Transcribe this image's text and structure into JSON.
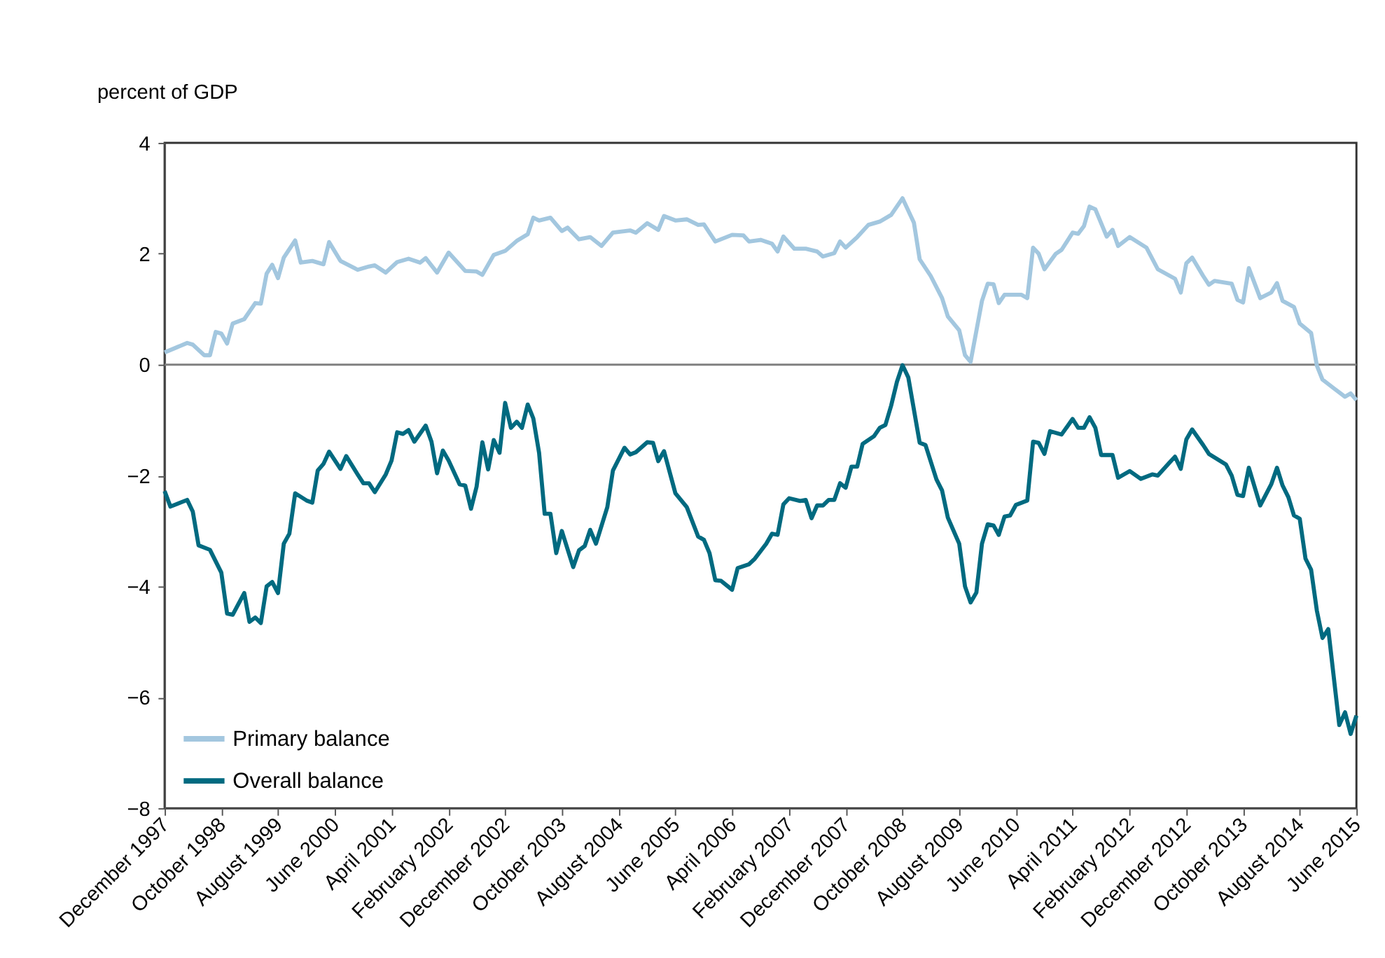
{
  "chart_data": {
    "type": "line",
    "ylabel": "percent of GDP",
    "ylim": [
      -8,
      4
    ],
    "yticks": [
      {
        "value": -8,
        "label": "−8"
      },
      {
        "value": -6,
        "label": "−6"
      },
      {
        "value": -4,
        "label": "−4"
      },
      {
        "value": -2,
        "label": "−2"
      },
      0,
      2,
      4
    ],
    "xlim": [
      "1997-12",
      "2015-06"
    ],
    "xticks": [
      {
        "value": "1997-12",
        "label": "December 1997"
      },
      {
        "value": "1998-10",
        "label": "October 1998"
      },
      {
        "value": "1999-08",
        "label": "August 1999"
      },
      {
        "value": "2000-06",
        "label": "June 2000"
      },
      {
        "value": "2001-04",
        "label": "April 2001"
      },
      {
        "value": "2002-02",
        "label": "February 2002"
      },
      {
        "value": "2002-12",
        "label": "December 2002"
      },
      {
        "value": "2003-10",
        "label": "October 2003"
      },
      {
        "value": "2004-08",
        "label": "August 2004"
      },
      {
        "value": "2005-06",
        "label": "June 2005"
      },
      {
        "value": "2006-04",
        "label": "April 2006"
      },
      {
        "value": "2007-02",
        "label": "February 2007"
      },
      {
        "value": "2007-12",
        "label": "December 2007"
      },
      {
        "value": "2008-10",
        "label": "October 2008"
      },
      {
        "value": "2009-08",
        "label": "August 2009"
      },
      {
        "value": "2010-06",
        "label": "June 2010"
      },
      {
        "value": "2011-04",
        "label": "April 2011"
      },
      {
        "value": "2012-02",
        "label": "February 2012"
      },
      {
        "value": "2012-12",
        "label": "December 2012"
      },
      {
        "value": "2013-10",
        "label": "October 2013"
      },
      {
        "value": "2014-08",
        "label": "August 2014"
      },
      {
        "value": "2015-06",
        "label": "June 2015"
      }
    ],
    "grid": false,
    "legend": "bottom left",
    "marker": "none",
    "line_style": "solid",
    "ref_lines": [
      {
        "axis": "y",
        "value": 0,
        "color": "#808080"
      }
    ],
    "series": [
      {
        "name": "Primary balance",
        "color": "#a3c7df",
        "x": [
          "1997-12",
          "1998-04",
          "1998-05",
          "1998-07",
          "1998-08",
          "1998-09",
          "1998-10",
          "1998-11",
          "1998-12",
          "1999-02",
          "1999-04",
          "1999-05",
          "1999-06",
          "1999-07",
          "1999-08",
          "1999-09",
          "1999-11",
          "1999-12",
          "2000-02",
          "2000-04",
          "2000-05",
          "2000-07",
          "2000-10",
          "2000-12",
          "2001-01",
          "2001-03",
          "2001-05",
          "2001-07",
          "2001-09",
          "2001-10",
          "2001-12",
          "2002-02",
          "2002-05",
          "2002-07",
          "2002-08",
          "2002-10",
          "2002-12",
          "2003-02",
          "2003-04",
          "2003-05",
          "2003-06",
          "2003-08",
          "2003-10",
          "2003-11",
          "2004-01",
          "2004-03",
          "2004-05",
          "2004-07",
          "2004-10",
          "2004-11",
          "2005-01",
          "2005-03",
          "2005-04",
          "2005-06",
          "2005-08",
          "2005-10",
          "2005-11",
          "2006-01",
          "2006-04",
          "2006-06",
          "2006-07",
          "2006-09",
          "2006-11",
          "2006-12",
          "2007-01",
          "2007-03",
          "2007-05",
          "2007-07",
          "2007-08",
          "2007-10",
          "2007-11",
          "2007-12",
          "2008-02",
          "2008-04",
          "2008-06",
          "2008-08",
          "2008-10",
          "2008-12",
          "2009-01",
          "2009-03",
          "2009-05",
          "2009-06",
          "2009-08",
          "2009-09",
          "2009-10",
          "2009-12",
          "2010-01",
          "2010-02",
          "2010-03",
          "2010-04",
          "2010-07",
          "2010-08",
          "2010-09",
          "2010-10",
          "2010-11",
          "2011-01",
          "2011-02",
          "2011-04",
          "2011-05",
          "2011-06",
          "2011-07",
          "2011-08",
          "2011-10",
          "2011-11",
          "2011-12",
          "2012-02",
          "2012-05",
          "2012-07",
          "2012-10",
          "2012-11",
          "2012-12",
          "2013-01",
          "2013-03",
          "2013-04",
          "2013-05",
          "2013-08",
          "2013-09",
          "2013-10",
          "2013-11",
          "2014-01",
          "2014-03",
          "2014-04",
          "2014-05",
          "2014-07",
          "2014-08",
          "2014-10",
          "2014-11",
          "2014-12",
          "2015-02",
          "2015-04",
          "2015-05",
          "2015-06"
        ],
        "values": [
          0.22,
          0.39,
          0.36,
          0.17,
          0.17,
          0.59,
          0.56,
          0.38,
          0.74,
          0.82,
          1.11,
          1.1,
          1.64,
          1.8,
          1.56,
          1.93,
          2.24,
          1.84,
          1.87,
          1.81,
          2.21,
          1.87,
          1.71,
          1.77,
          1.79,
          1.66,
          1.85,
          1.91,
          1.84,
          1.92,
          1.66,
          2.02,
          1.69,
          1.68,
          1.62,
          1.98,
          2.05,
          2.23,
          2.35,
          2.65,
          2.6,
          2.65,
          2.41,
          2.47,
          2.26,
          2.3,
          2.14,
          2.38,
          2.42,
          2.38,
          2.55,
          2.43,
          2.68,
          2.6,
          2.62,
          2.52,
          2.53,
          2.22,
          2.34,
          2.33,
          2.22,
          2.25,
          2.18,
          2.04,
          2.31,
          2.09,
          2.09,
          2.04,
          1.95,
          2.01,
          2.22,
          2.11,
          2.3,
          2.52,
          2.58,
          2.7,
          3.0,
          2.56,
          1.9,
          1.6,
          1.2,
          0.87,
          0.62,
          0.17,
          0.05,
          1.15,
          1.46,
          1.45,
          1.11,
          1.26,
          1.26,
          1.2,
          2.11,
          2.0,
          1.72,
          2.0,
          2.07,
          2.38,
          2.36,
          2.5,
          2.85,
          2.8,
          2.31,
          2.43,
          2.14,
          2.3,
          2.11,
          1.72,
          1.55,
          1.3,
          1.83,
          1.93,
          1.6,
          1.44,
          1.51,
          1.46,
          1.17,
          1.12,
          1.74,
          1.2,
          1.3,
          1.47,
          1.15,
          1.04,
          0.74,
          0.57,
          -0.02,
          -0.27,
          -0.43,
          -0.58,
          -0.52,
          -0.64
        ]
      },
      {
        "name": "Overall balance",
        "color": "#006a80",
        "x": [
          "1997-12",
          "1998-01",
          "1998-04",
          "1998-05",
          "1998-06",
          "1998-08",
          "1998-10",
          "1998-11",
          "1998-12",
          "1999-02",
          "1999-03",
          "1999-04",
          "1999-05",
          "1999-06",
          "1999-07",
          "1999-08",
          "1999-09",
          "1999-10",
          "1999-11",
          "2000-01",
          "2000-02",
          "2000-03",
          "2000-04",
          "2000-05",
          "2000-07",
          "2000-08",
          "2000-10",
          "2000-11",
          "2000-12",
          "2001-01",
          "2001-03",
          "2001-04",
          "2001-05",
          "2001-06",
          "2001-07",
          "2001-08",
          "2001-10",
          "2001-11",
          "2001-12",
          "2002-01",
          "2002-02",
          "2002-04",
          "2002-05",
          "2002-06",
          "2002-07",
          "2002-08",
          "2002-09",
          "2002-10",
          "2002-11",
          "2002-12",
          "2003-01",
          "2003-02",
          "2003-03",
          "2003-04",
          "2003-05",
          "2003-06",
          "2003-07",
          "2003-08",
          "2003-09",
          "2003-10",
          "2003-12",
          "2004-01",
          "2004-02",
          "2004-03",
          "2004-04",
          "2004-06",
          "2004-07",
          "2004-09",
          "2004-10",
          "2004-11",
          "2005-01",
          "2005-02",
          "2005-03",
          "2005-04",
          "2005-06",
          "2005-08",
          "2005-10",
          "2005-11",
          "2005-12",
          "2006-01",
          "2006-02",
          "2006-04",
          "2006-05",
          "2006-07",
          "2006-08",
          "2006-10",
          "2006-11",
          "2006-12",
          "2007-01",
          "2007-02",
          "2007-04",
          "2007-05",
          "2007-06",
          "2007-07",
          "2007-08",
          "2007-09",
          "2007-10",
          "2007-11",
          "2007-12",
          "2008-01",
          "2008-02",
          "2008-03",
          "2008-05",
          "2008-06",
          "2008-07",
          "2008-08",
          "2008-09",
          "2008-10",
          "2008-11",
          "2009-01",
          "2009-02",
          "2009-04",
          "2009-05",
          "2009-06",
          "2009-08",
          "2009-09",
          "2009-10",
          "2009-11",
          "2009-12",
          "2010-01",
          "2010-02",
          "2010-03",
          "2010-04",
          "2010-05",
          "2010-06",
          "2010-08",
          "2010-09",
          "2010-10",
          "2010-11",
          "2010-12",
          "2011-02",
          "2011-04",
          "2011-05",
          "2011-06",
          "2011-07",
          "2011-08",
          "2011-09",
          "2011-11",
          "2011-12",
          "2012-02",
          "2012-04",
          "2012-06",
          "2012-07",
          "2012-09",
          "2012-10",
          "2012-11",
          "2012-12",
          "2013-01",
          "2013-03",
          "2013-04",
          "2013-07",
          "2013-08",
          "2013-09",
          "2013-10",
          "2013-11",
          "2014-01",
          "2014-03",
          "2014-04",
          "2014-05",
          "2014-06",
          "2014-07",
          "2014-08",
          "2014-09",
          "2014-10",
          "2014-11",
          "2014-12",
          "2015-01",
          "2015-03",
          "2015-04",
          "2015-05",
          "2015-06"
        ],
        "values": [
          -2.28,
          -2.56,
          -2.44,
          -2.65,
          -3.26,
          -3.34,
          -3.75,
          -4.49,
          -4.51,
          -4.12,
          -4.64,
          -4.56,
          -4.66,
          -4.0,
          -3.92,
          -4.12,
          -3.23,
          -3.05,
          -2.32,
          -2.45,
          -2.49,
          -1.91,
          -1.79,
          -1.57,
          -1.88,
          -1.65,
          -1.98,
          -2.14,
          -2.14,
          -2.3,
          -1.98,
          -1.73,
          -1.22,
          -1.25,
          -1.18,
          -1.39,
          -1.1,
          -1.39,
          -1.96,
          -1.55,
          -1.73,
          -2.16,
          -2.18,
          -2.6,
          -2.2,
          -1.4,
          -1.89,
          -1.36,
          -1.59,
          -0.69,
          -1.14,
          -1.03,
          -1.14,
          -0.72,
          -0.97,
          -1.59,
          -2.69,
          -2.69,
          -3.4,
          -3.0,
          -3.65,
          -3.35,
          -3.27,
          -2.98,
          -3.23,
          -2.57,
          -1.91,
          -1.5,
          -1.62,
          -1.58,
          -1.4,
          -1.41,
          -1.74,
          -1.56,
          -2.32,
          -2.57,
          -3.1,
          -3.16,
          -3.4,
          -3.89,
          -3.9,
          -4.06,
          -3.67,
          -3.6,
          -3.5,
          -3.23,
          -3.05,
          -3.07,
          -2.52,
          -2.41,
          -2.46,
          -2.44,
          -2.77,
          -2.54,
          -2.54,
          -2.44,
          -2.44,
          -2.14,
          -2.22,
          -1.84,
          -1.84,
          -1.43,
          -1.29,
          -1.14,
          -1.09,
          -0.74,
          -0.31,
          -0.01,
          -0.23,
          -1.41,
          -1.45,
          -2.07,
          -2.27,
          -2.76,
          -3.23,
          -4.0,
          -4.29,
          -4.11,
          -3.23,
          -2.88,
          -2.9,
          -3.07,
          -2.74,
          -2.72,
          -2.53,
          -2.45,
          -1.39,
          -1.41,
          -1.61,
          -1.2,
          -1.26,
          -0.98,
          -1.14,
          -1.14,
          -0.95,
          -1.14,
          -1.63,
          -1.63,
          -2.04,
          -1.92,
          -2.06,
          -1.98,
          -2.0,
          -1.77,
          -1.66,
          -1.88,
          -1.35,
          -1.17,
          -1.45,
          -1.61,
          -1.8,
          -2.0,
          -2.35,
          -2.37,
          -1.86,
          -2.54,
          -2.16,
          -1.86,
          -2.18,
          -2.39,
          -2.72,
          -2.78,
          -3.5,
          -3.7,
          -4.44,
          -4.93,
          -4.77,
          -6.5,
          -6.27,
          -6.66,
          -6.33
        ]
      }
    ]
  }
}
